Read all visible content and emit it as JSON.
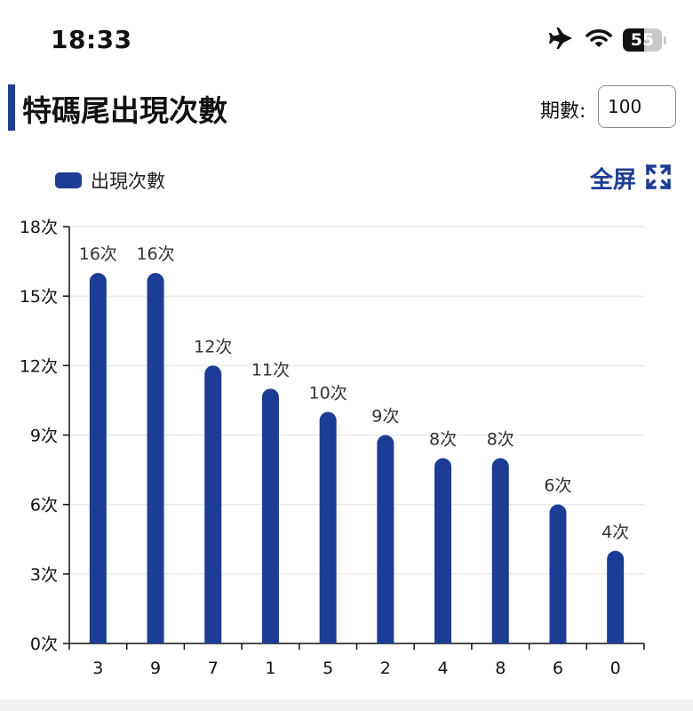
{
  "status_bar": {
    "time": "18:33",
    "battery_percent": 55,
    "battery_label": "55",
    "icons": [
      "airplane-icon",
      "wifi-icon",
      "battery-icon"
    ]
  },
  "header": {
    "title": "特碼尾出現次數",
    "period_label": "期數:",
    "period_value": "100"
  },
  "fullscreen_label": "全屏",
  "colors": {
    "accent": "#1d3c96",
    "grid": "#e3e6ee",
    "axis": "#111111"
  },
  "chart_data": {
    "type": "bar",
    "categories": [
      "3",
      "9",
      "7",
      "1",
      "5",
      "2",
      "4",
      "8",
      "6",
      "0"
    ],
    "series": [
      {
        "name": "出現次數",
        "values": [
          16,
          16,
          12,
          11,
          10,
          9,
          8,
          8,
          6,
          4
        ]
      }
    ],
    "data_labels": [
      "16次",
      "16次",
      "12次",
      "11次",
      "10次",
      "9次",
      "8次",
      "8次",
      "6次",
      "4次"
    ],
    "ylim": [
      0,
      18
    ],
    "y_ticks": [
      0,
      3,
      6,
      9,
      12,
      15,
      18
    ],
    "y_tick_labels": [
      "0次",
      "3次",
      "6次",
      "9次",
      "12次",
      "15次",
      "18次"
    ],
    "legend_position": "top-left",
    "grid": true
  }
}
